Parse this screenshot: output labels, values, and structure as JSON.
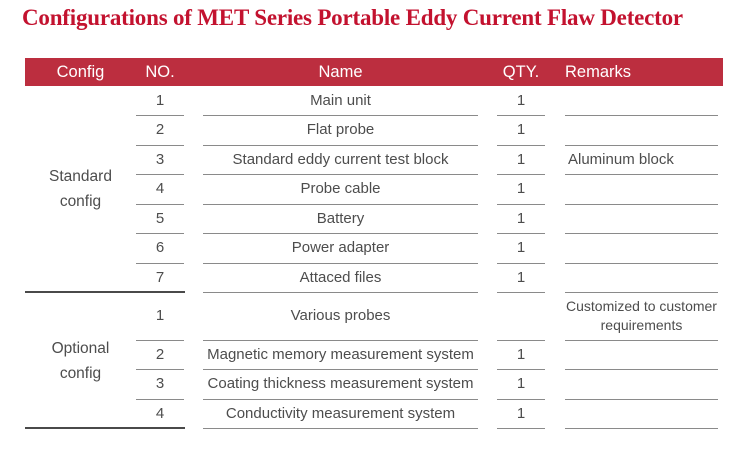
{
  "page": {
    "title": "Configurations of MET Series Portable Eddy Current Flaw Detector"
  },
  "colors": {
    "title_red": "#c3122f",
    "header_bar_red": "#bc2e3f",
    "header_text": "#ffffff",
    "body_text": "#4d4d4d",
    "row_line_gray": "#8a8a8a",
    "section_divider_gray": "#4a4a4a"
  },
  "table": {
    "headers": {
      "config": "Config",
      "no": "NO.",
      "name": "Name",
      "qty": "QTY.",
      "remarks": "Remarks"
    },
    "sections": [
      {
        "config_label": "Standard config",
        "rows": [
          {
            "no": "1",
            "name": "Main unit",
            "qty": "1",
            "remarks": ""
          },
          {
            "no": "2",
            "name": "Flat probe",
            "qty": "1",
            "remarks": ""
          },
          {
            "no": "3",
            "name": "Standard eddy current test block",
            "qty": "1",
            "remarks": "Aluminum block"
          },
          {
            "no": "4",
            "name": "Probe cable",
            "qty": "1",
            "remarks": ""
          },
          {
            "no": "5",
            "name": "Battery",
            "qty": "1",
            "remarks": ""
          },
          {
            "no": "6",
            "name": "Power adapter",
            "qty": "1",
            "remarks": ""
          },
          {
            "no": "7",
            "name": "Attaced files",
            "qty": "1",
            "remarks": ""
          }
        ]
      },
      {
        "config_label": "Optional config",
        "rows": [
          {
            "no": "1",
            "name": "Various probes",
            "qty": "",
            "remarks": "Customized to customer requirements",
            "remarks_center": true,
            "tall": true
          },
          {
            "no": "2",
            "name": "Magnetic memory measurement system",
            "qty": "1",
            "remarks": ""
          },
          {
            "no": "3",
            "name": "Coating thickness measurement system",
            "qty": "1",
            "remarks": ""
          },
          {
            "no": "4",
            "name": "Conductivity measurement system",
            "qty": "1",
            "remarks": ""
          }
        ]
      }
    ]
  }
}
